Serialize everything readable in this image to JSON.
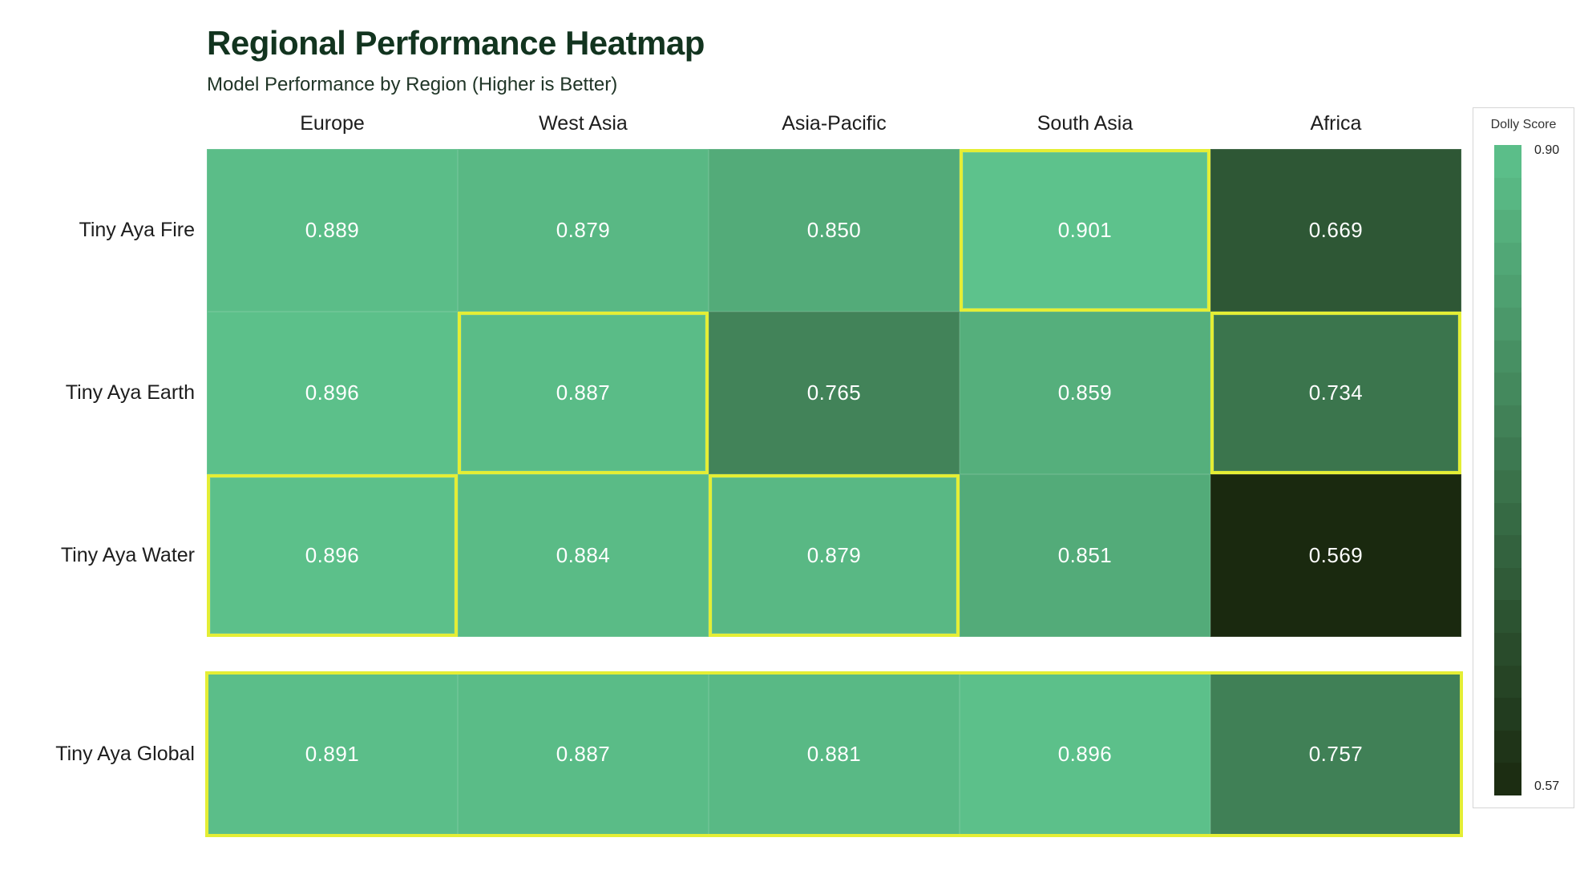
{
  "title": "Regional Performance Heatmap",
  "subtitle": "Model Performance by Region (Higher is Better)",
  "legend": {
    "title": "Dolly Score",
    "max_label": "0.90",
    "min_label": "0.57"
  },
  "style": {
    "cmap_low": "#1a290f",
    "cmap_high": "#5dc28c",
    "highlight": "#e4ee35",
    "title_color": "#12341f",
    "legend_bands": 20
  },
  "chart_data": {
    "type": "heatmap",
    "title": "Regional Performance Heatmap",
    "subtitle": "Model Performance by Region (Higher is Better)",
    "columns": [
      "Europe",
      "West Asia",
      "Asia-Pacific",
      "South Asia",
      "Africa"
    ],
    "rows": [
      "Tiny Aya Fire",
      "Tiny Aya Earth",
      "Tiny Aya Water",
      "Tiny Aya Global"
    ],
    "values": [
      [
        0.889,
        0.879,
        0.85,
        0.901,
        0.669
      ],
      [
        0.896,
        0.887,
        0.765,
        0.859,
        0.734
      ],
      [
        0.896,
        0.884,
        0.879,
        0.851,
        0.569
      ],
      [
        0.891,
        0.887,
        0.881,
        0.896,
        0.757
      ]
    ],
    "value_decimals": 3,
    "colorbar": {
      "label": "Dolly Score",
      "min": 0.57,
      "max": 0.9
    },
    "highlighted_cells": [
      [
        0,
        3
      ],
      [
        1,
        1
      ],
      [
        1,
        4
      ],
      [
        2,
        0
      ],
      [
        2,
        2
      ]
    ],
    "highlighted_row_index": 3,
    "legend_position": "right",
    "grid": false
  }
}
